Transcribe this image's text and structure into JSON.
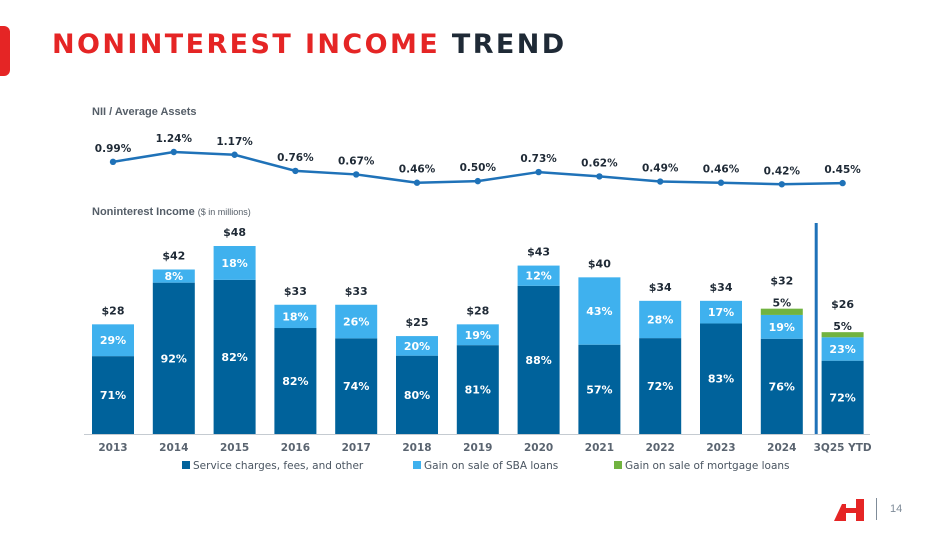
{
  "title": {
    "part1": "NONINTEREST INCOME",
    "part2": "TREND"
  },
  "page_number": "14",
  "colors": {
    "accent_red": "#e52525",
    "dark_blue": "#00629b",
    "light_blue": "#3fb1ee",
    "green": "#71b340",
    "line": "#1f72b8",
    "text": "#1f2a36"
  },
  "chart_data": [
    {
      "type": "line",
      "title": "NII / Average Assets",
      "categories": [
        "2013",
        "2014",
        "2015",
        "2016",
        "2017",
        "2018",
        "2019",
        "2020",
        "2021",
        "2022",
        "2023",
        "2024",
        "3Q25 YTD"
      ],
      "values": [
        0.99,
        1.24,
        1.17,
        0.76,
        0.67,
        0.46,
        0.5,
        0.73,
        0.62,
        0.49,
        0.46,
        0.42,
        0.45
      ],
      "value_labels": [
        "0.99%",
        "1.24%",
        "1.17%",
        "0.76%",
        "0.67%",
        "0.46%",
        "0.50%",
        "0.73%",
        "0.62%",
        "0.49%",
        "0.46%",
        "0.42%",
        "0.45%"
      ],
      "ylim": [
        0.3,
        1.3
      ]
    },
    {
      "type": "bar",
      "stacked": true,
      "title": "Noninterest Income",
      "title_unit": "($ in millions)",
      "categories": [
        "2013",
        "2014",
        "2015",
        "2016",
        "2017",
        "2018",
        "2019",
        "2020",
        "2021",
        "2022",
        "2023",
        "2024",
        "3Q25 YTD"
      ],
      "totals": [
        28,
        42,
        48,
        33,
        33,
        25,
        28,
        43,
        40,
        34,
        34,
        32,
        26
      ],
      "total_labels": [
        "$28",
        "$42",
        "$48",
        "$33",
        "$33",
        "$25",
        "$28",
        "$43",
        "$40",
        "$34",
        "$34",
        "$32",
        "$26"
      ],
      "series": [
        {
          "name": "Service charges, fees, and other",
          "pct": [
            71,
            92,
            82,
            82,
            74,
            80,
            81,
            88,
            57,
            72,
            83,
            76,
            72
          ]
        },
        {
          "name": "Gain on sale of SBA loans",
          "pct": [
            29,
            8,
            18,
            18,
            26,
            20,
            19,
            12,
            43,
            28,
            17,
            19,
            23
          ]
        },
        {
          "name": "Gain on sale of mortgage loans",
          "pct": [
            0,
            0,
            0,
            0,
            0,
            0,
            0,
            0,
            0,
            0,
            0,
            5,
            5
          ]
        }
      ],
      "ylim": [
        0,
        48
      ],
      "divider_before": "3Q25 YTD"
    }
  ]
}
